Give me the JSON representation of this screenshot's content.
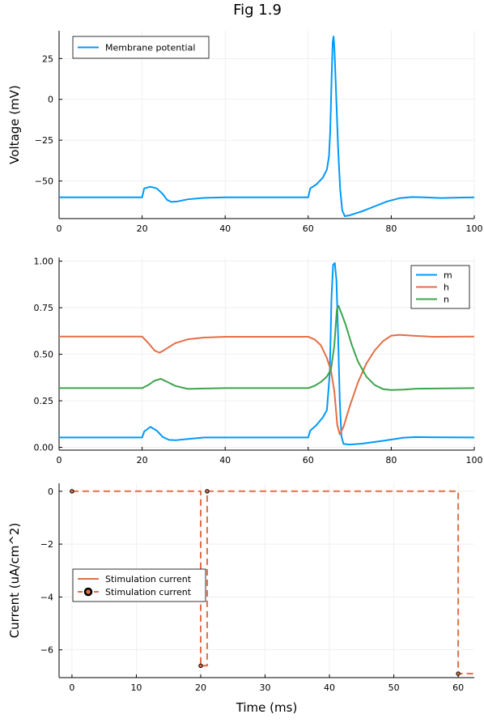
{
  "figure_title": "Fig 1.9",
  "chart_data": [
    {
      "type": "line",
      "xlim": [
        0,
        100
      ],
      "ylim": [
        -73,
        42
      ],
      "xticks": [
        0,
        20,
        40,
        60,
        80,
        100
      ],
      "yticks": [
        -50,
        -25,
        0,
        25
      ],
      "ytick_labels": [
        "−50",
        "−25",
        "0",
        "25"
      ],
      "xlabel": "",
      "ylabel": "Voltage (mV)",
      "grid": true,
      "legend": "top-left",
      "series": [
        {
          "name": "Membrane potential",
          "color": "#009AFA",
          "points": [
            [
              0,
              -60
            ],
            [
              20,
              -60
            ],
            [
              20.5,
              -54.5
            ],
            [
              22,
              -53.5
            ],
            [
              23.5,
              -54.5
            ],
            [
              25,
              -58
            ],
            [
              26,
              -61.5
            ],
            [
              27,
              -62.8
            ],
            [
              28.5,
              -62.5
            ],
            [
              31,
              -61.2
            ],
            [
              35,
              -60.3
            ],
            [
              40,
              -60
            ],
            [
              60,
              -60
            ],
            [
              60.5,
              -54.5
            ],
            [
              62,
              -52
            ],
            [
              63.5,
              -48
            ],
            [
              64.5,
              -43
            ],
            [
              65,
              -35
            ],
            [
              65.3,
              -20
            ],
            [
              65.6,
              10
            ],
            [
              65.9,
              35
            ],
            [
              66.1,
              38.5
            ],
            [
              66.3,
              32
            ],
            [
              66.7,
              5
            ],
            [
              67.2,
              -30
            ],
            [
              67.7,
              -55
            ],
            [
              68.2,
              -68
            ],
            [
              68.8,
              -71.5
            ],
            [
              70,
              -71
            ],
            [
              73,
              -68.5
            ],
            [
              76,
              -65.5
            ],
            [
              79,
              -62.5
            ],
            [
              82,
              -60.5
            ],
            [
              85,
              -59.8
            ],
            [
              88,
              -60
            ],
            [
              92,
              -60.4
            ],
            [
              96,
              -60.2
            ],
            [
              100,
              -60
            ]
          ]
        }
      ]
    },
    {
      "type": "line",
      "xlim": [
        0,
        100
      ],
      "ylim": [
        -0.015,
        1.02
      ],
      "xticks": [
        0,
        20,
        40,
        60,
        80,
        100
      ],
      "yticks": [
        0,
        0.25,
        0.5,
        0.75,
        1.0
      ],
      "ytick_labels": [
        "0.00",
        "0.25",
        "0.50",
        "0.75",
        "1.00"
      ],
      "xlabel": "",
      "ylabel": "",
      "grid": true,
      "legend": "top-right",
      "series": [
        {
          "name": "m",
          "color": "#009AFA",
          "points": [
            [
              0,
              0.053
            ],
            [
              20,
              0.053
            ],
            [
              20.5,
              0.085
            ],
            [
              22,
              0.11
            ],
            [
              23.5,
              0.09
            ],
            [
              25,
              0.055
            ],
            [
              26.5,
              0.04
            ],
            [
              28,
              0.038
            ],
            [
              31,
              0.045
            ],
            [
              35,
              0.053
            ],
            [
              40,
              0.053
            ],
            [
              60,
              0.053
            ],
            [
              60.5,
              0.09
            ],
            [
              62,
              0.12
            ],
            [
              63.5,
              0.16
            ],
            [
              64.5,
              0.2
            ],
            [
              65.2,
              0.4
            ],
            [
              65.6,
              0.8
            ],
            [
              66,
              0.98
            ],
            [
              66.4,
              0.99
            ],
            [
              66.8,
              0.9
            ],
            [
              67.2,
              0.6
            ],
            [
              67.6,
              0.25
            ],
            [
              68,
              0.06
            ],
            [
              68.5,
              0.018
            ],
            [
              70,
              0.015
            ],
            [
              73,
              0.02
            ],
            [
              78,
              0.035
            ],
            [
              83,
              0.052
            ],
            [
              86,
              0.055
            ],
            [
              90,
              0.054
            ],
            [
              100,
              0.053
            ]
          ]
        },
        {
          "name": "h",
          "color": "#E26F46",
          "points": [
            [
              0,
              0.595
            ],
            [
              20,
              0.595
            ],
            [
              21.5,
              0.56
            ],
            [
              23,
              0.52
            ],
            [
              24.2,
              0.508
            ],
            [
              25.5,
              0.525
            ],
            [
              28,
              0.56
            ],
            [
              31,
              0.58
            ],
            [
              35,
              0.59
            ],
            [
              40,
              0.594
            ],
            [
              60,
              0.594
            ],
            [
              61.5,
              0.58
            ],
            [
              63,
              0.55
            ],
            [
              64.5,
              0.48
            ],
            [
              65.5,
              0.41
            ],
            [
              66.3,
              0.3
            ],
            [
              67,
              0.12
            ],
            [
              67.6,
              0.07
            ],
            [
              68.5,
              0.11
            ],
            [
              70,
              0.22
            ],
            [
              72,
              0.35
            ],
            [
              74,
              0.45
            ],
            [
              76,
              0.52
            ],
            [
              78,
              0.57
            ],
            [
              80,
              0.6
            ],
            [
              82,
              0.604
            ],
            [
              85,
              0.6
            ],
            [
              90,
              0.594
            ],
            [
              100,
              0.595
            ]
          ]
        },
        {
          "name": "n",
          "color": "#3DA44D",
          "points": [
            [
              0,
              0.318
            ],
            [
              20,
              0.318
            ],
            [
              21.5,
              0.335
            ],
            [
              23,
              0.358
            ],
            [
              24.5,
              0.368
            ],
            [
              26,
              0.352
            ],
            [
              28,
              0.33
            ],
            [
              31,
              0.314
            ],
            [
              35,
              0.316
            ],
            [
              40,
              0.318
            ],
            [
              60,
              0.318
            ],
            [
              61.5,
              0.33
            ],
            [
              63,
              0.35
            ],
            [
              64.5,
              0.38
            ],
            [
              65.5,
              0.42
            ],
            [
              66.3,
              0.55
            ],
            [
              66.9,
              0.74
            ],
            [
              67.3,
              0.76
            ],
            [
              68,
              0.72
            ],
            [
              69,
              0.66
            ],
            [
              70.5,
              0.55
            ],
            [
              72,
              0.46
            ],
            [
              74,
              0.38
            ],
            [
              76,
              0.335
            ],
            [
              78,
              0.313
            ],
            [
              80,
              0.308
            ],
            [
              83,
              0.31
            ],
            [
              86,
              0.315
            ],
            [
              100,
              0.318
            ]
          ]
        }
      ]
    },
    {
      "type": "line",
      "xlim": [
        -2,
        62.5
      ],
      "ylim": [
        -7.05,
        0.3
      ],
      "xticks": [
        0,
        10,
        20,
        30,
        40,
        50,
        60
      ],
      "yticks": [
        -6,
        -4,
        -2,
        0
      ],
      "ytick_labels": [
        "−6",
        "−4",
        "−2",
        "0"
      ],
      "xlabel": "Time (ms)",
      "ylabel": "Current (uA/cm^2)",
      "grid": true,
      "legend": "mid-left",
      "series": [
        {
          "name": "Stimulation current",
          "color": "#E26F46",
          "style": "dashed",
          "points": [
            [
              0,
              0
            ],
            [
              20,
              0
            ],
            [
              20,
              -6.6
            ],
            [
              21,
              -6.6
            ],
            [
              21,
              0
            ],
            [
              60,
              0
            ],
            [
              60,
              -6.9
            ],
            [
              62.5,
              -6.9
            ]
          ]
        },
        {
          "name": "Stimulation current",
          "color": "#E26F46",
          "style": "markers",
          "points": [
            [
              0,
              0
            ],
            [
              20,
              -6.6
            ],
            [
              21,
              0
            ],
            [
              60,
              -6.9
            ]
          ]
        }
      ]
    }
  ]
}
